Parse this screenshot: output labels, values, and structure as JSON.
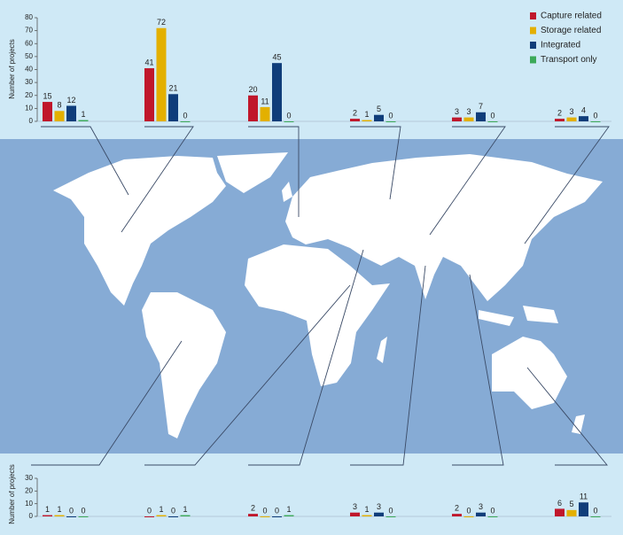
{
  "chart_data": [
    {
      "type": "bar",
      "y_label": "Number of projects",
      "categories": [
        null,
        null,
        null,
        null,
        null,
        null
      ],
      "series": [
        {
          "name": "Capture related",
          "color": "#c0172b",
          "values": [
            15,
            41,
            20,
            2,
            3,
            2
          ]
        },
        {
          "name": "Storage related",
          "color": "#e3b000",
          "values": [
            8,
            72,
            11,
            1,
            3,
            3
          ]
        },
        {
          "name": "Integrated",
          "color": "#0f3d7a",
          "values": [
            12,
            21,
            45,
            5,
            7,
            4
          ]
        },
        {
          "name": "Transport only",
          "color": "#3daa5a",
          "values": [
            1,
            0,
            0,
            0,
            0,
            0
          ]
        }
      ],
      "ylim": [
        0,
        80
      ],
      "yticks": [
        0,
        10,
        20,
        30,
        40,
        50,
        60,
        70,
        80
      ],
      "legend": "top-right"
    },
    {
      "type": "bar",
      "y_label": "Number of projects",
      "categories": [
        null,
        null,
        null,
        null,
        null,
        null
      ],
      "series": [
        {
          "color": "#c0172b",
          "values": [
            1,
            0,
            2,
            3,
            2,
            6
          ]
        },
        {
          "color": "#e3b000",
          "values": [
            1,
            1,
            0,
            1,
            0,
            5
          ]
        },
        {
          "color": "#0f3d7a",
          "values": [
            0,
            0,
            0,
            3,
            3,
            11
          ]
        },
        {
          "color": "#3daa5a",
          "values": [
            0,
            1,
            1,
            0,
            0,
            0
          ]
        }
      ],
      "ylim": [
        0,
        30
      ],
      "yticks": [
        0,
        10,
        20,
        30
      ]
    }
  ]
}
